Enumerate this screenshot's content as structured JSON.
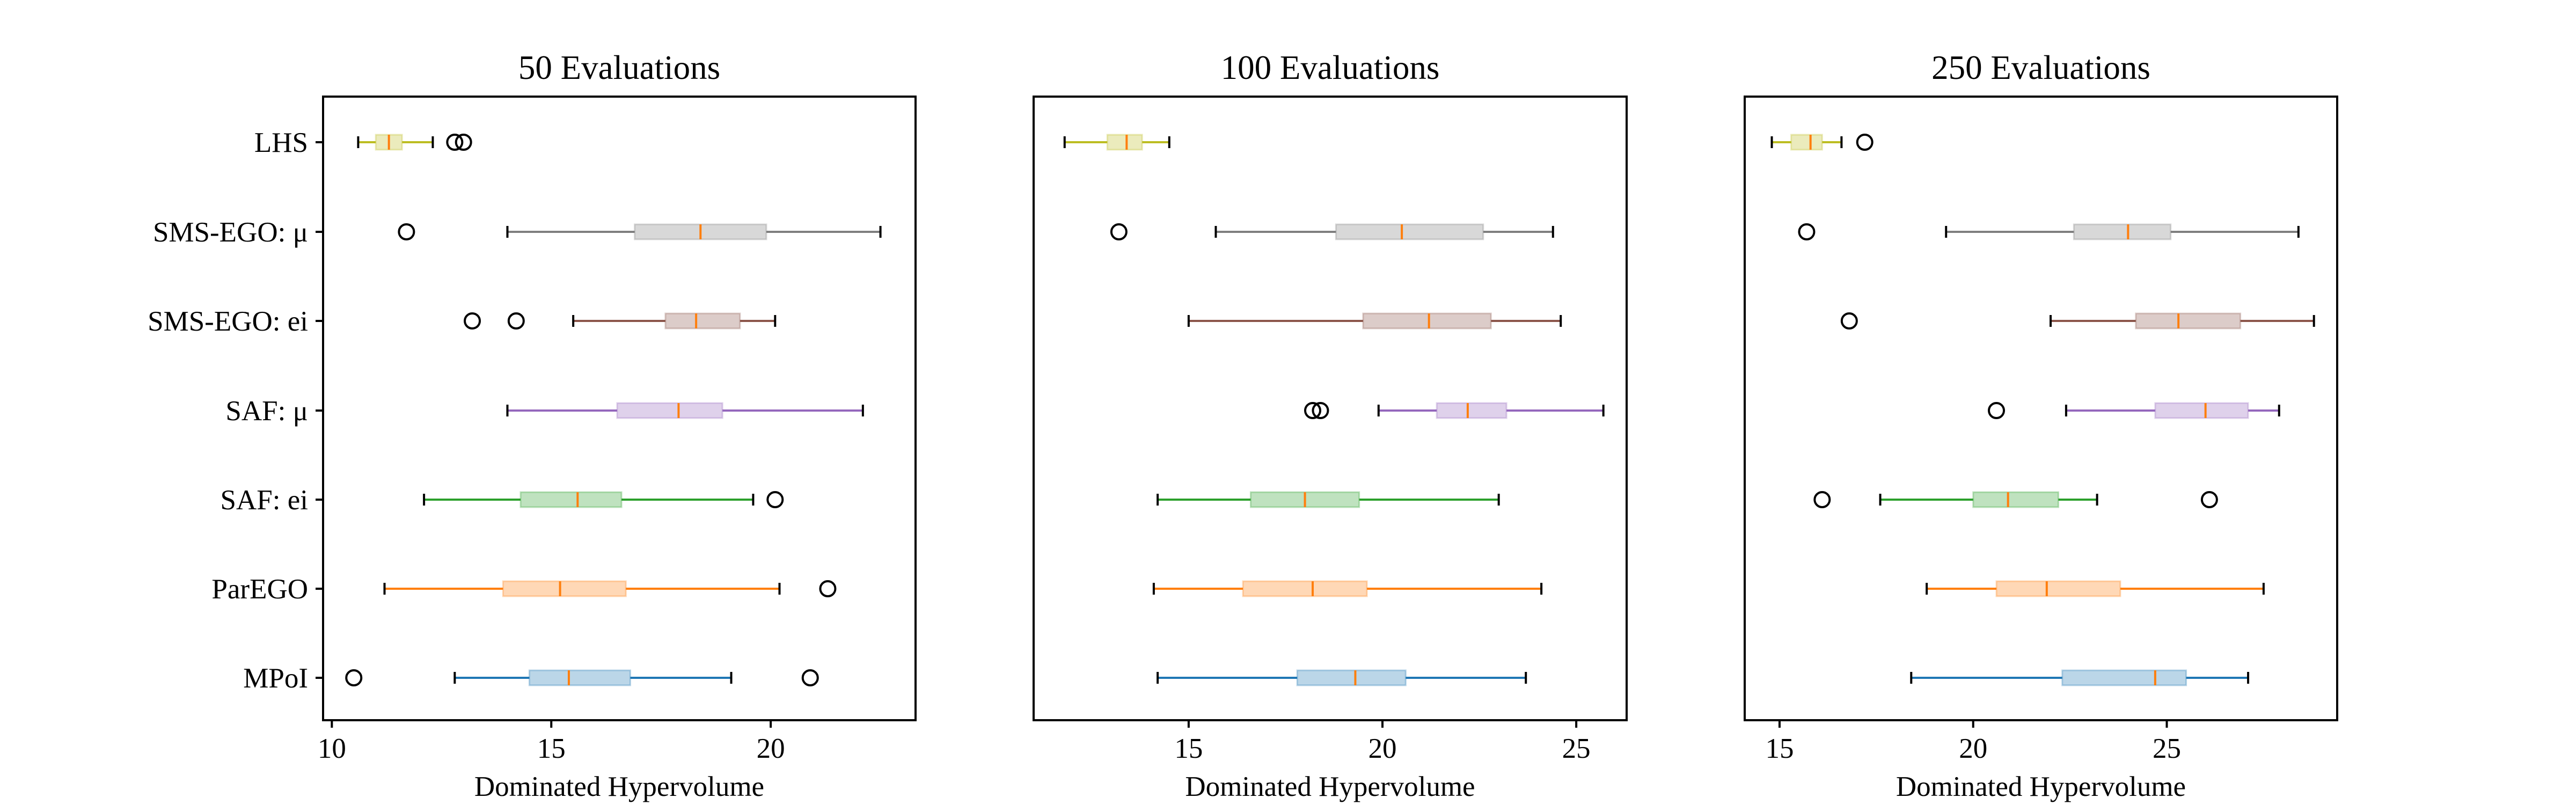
{
  "chart_data": [
    {
      "type": "boxplot",
      "orientation": "horizontal",
      "title": "50 Evaluations",
      "xlabel": "Dominated Hypervolume",
      "xlim": [
        9.8,
        23.3
      ],
      "xticks": [
        10,
        15,
        20
      ],
      "categories": [
        "LHS",
        "SMS-EGO: μ",
        "SMS-EGO: ei",
        "SAF: μ",
        "SAF: ei",
        "ParEGO",
        "MPoI"
      ],
      "boxes": [
        {
          "whislo": 10.6,
          "q1": 11.0,
          "med": 11.3,
          "q3": 11.6,
          "whishi": 12.3,
          "fliers": [
            12.8,
            13.0
          ]
        },
        {
          "whislo": 14.0,
          "q1": 16.9,
          "med": 18.4,
          "q3": 19.9,
          "whishi": 22.5,
          "fliers": [
            11.7
          ]
        },
        {
          "whislo": 15.5,
          "q1": 17.6,
          "med": 18.3,
          "q3": 19.3,
          "whishi": 20.1,
          "fliers": [
            13.2,
            14.2
          ]
        },
        {
          "whislo": 14.0,
          "q1": 16.5,
          "med": 17.9,
          "q3": 18.9,
          "whishi": 22.1,
          "fliers": []
        },
        {
          "whislo": 12.1,
          "q1": 14.3,
          "med": 15.6,
          "q3": 16.6,
          "whishi": 19.6,
          "fliers": [
            20.1
          ]
        },
        {
          "whislo": 11.2,
          "q1": 13.9,
          "med": 15.2,
          "q3": 16.7,
          "whishi": 20.2,
          "fliers": [
            21.3
          ]
        },
        {
          "whislo": 12.8,
          "q1": 14.5,
          "med": 15.4,
          "q3": 16.8,
          "whishi": 19.1,
          "fliers": [
            10.5,
            20.9
          ]
        }
      ]
    },
    {
      "type": "boxplot",
      "orientation": "horizontal",
      "title": "100 Evaluations",
      "xlabel": "Dominated Hypervolume",
      "xlim": [
        11.0,
        26.3
      ],
      "xticks": [
        15,
        20,
        25
      ],
      "categories": [
        "LHS",
        "SMS-EGO: μ",
        "SMS-EGO: ei",
        "SAF: μ",
        "SAF: ei",
        "ParEGO",
        "MPoI"
      ],
      "boxes": [
        {
          "whislo": 11.8,
          "q1": 12.9,
          "med": 13.4,
          "q3": 13.8,
          "whishi": 14.5,
          "fliers": []
        },
        {
          "whislo": 15.7,
          "q1": 18.8,
          "med": 20.5,
          "q3": 22.6,
          "whishi": 24.4,
          "fliers": [
            13.2
          ]
        },
        {
          "whislo": 15.0,
          "q1": 19.5,
          "med": 21.2,
          "q3": 22.8,
          "whishi": 24.6,
          "fliers": []
        },
        {
          "whislo": 19.9,
          "q1": 21.4,
          "med": 22.2,
          "q3": 23.2,
          "whishi": 25.7,
          "fliers": [
            18.2,
            18.4
          ]
        },
        {
          "whislo": 14.2,
          "q1": 16.6,
          "med": 18.0,
          "q3": 19.4,
          "whishi": 23.0,
          "fliers": []
        },
        {
          "whislo": 14.1,
          "q1": 16.4,
          "med": 18.2,
          "q3": 19.6,
          "whishi": 24.1,
          "fliers": []
        },
        {
          "whislo": 14.2,
          "q1": 17.8,
          "med": 19.3,
          "q3": 20.6,
          "whishi": 23.7,
          "fliers": []
        }
      ]
    },
    {
      "type": "boxplot",
      "orientation": "horizontal",
      "title": "250 Evaluations",
      "xlabel": "Dominated Hypervolume",
      "xlim": [
        14.1,
        29.4
      ],
      "xticks": [
        15,
        20,
        25
      ],
      "categories": [
        "LHS",
        "SMS-EGO: μ",
        "SMS-EGO: ei",
        "SAF: μ",
        "SAF: ei",
        "ParEGO",
        "MPoI"
      ],
      "boxes": [
        {
          "whislo": 14.8,
          "q1": 15.3,
          "med": 15.8,
          "q3": 16.1,
          "whishi": 16.6,
          "fliers": [
            17.2
          ]
        },
        {
          "whislo": 19.3,
          "q1": 22.6,
          "med": 24.0,
          "q3": 25.1,
          "whishi": 28.4,
          "fliers": [
            15.7
          ]
        },
        {
          "whislo": 22.0,
          "q1": 24.2,
          "med": 25.3,
          "q3": 26.9,
          "whishi": 28.8,
          "fliers": [
            16.8
          ]
        },
        {
          "whislo": 22.4,
          "q1": 24.7,
          "med": 26.0,
          "q3": 27.1,
          "whishi": 27.9,
          "fliers": [
            20.6
          ]
        },
        {
          "whislo": 17.6,
          "q1": 20.0,
          "med": 20.9,
          "q3": 22.2,
          "whishi": 23.2,
          "fliers": [
            16.1,
            26.1
          ]
        },
        {
          "whislo": 18.8,
          "q1": 20.6,
          "med": 21.9,
          "q3": 23.8,
          "whishi": 27.5,
          "fliers": []
        },
        {
          "whislo": 18.4,
          "q1": 22.3,
          "med": 24.7,
          "q3": 25.5,
          "whishi": 27.1,
          "fliers": []
        }
      ]
    }
  ],
  "colors": {
    "LHS": "#bcbd22",
    "SMS-EGO: μ": "#7f7f7f",
    "SMS-EGO: ei": "#8c564b",
    "SAF: μ": "#9467bd",
    "SAF: ei": "#2ca02c",
    "ParEGO": "#ff7f0e",
    "MPoI": "#1f77b4",
    "median": "#ff7f0e",
    "axes": "#000000"
  }
}
